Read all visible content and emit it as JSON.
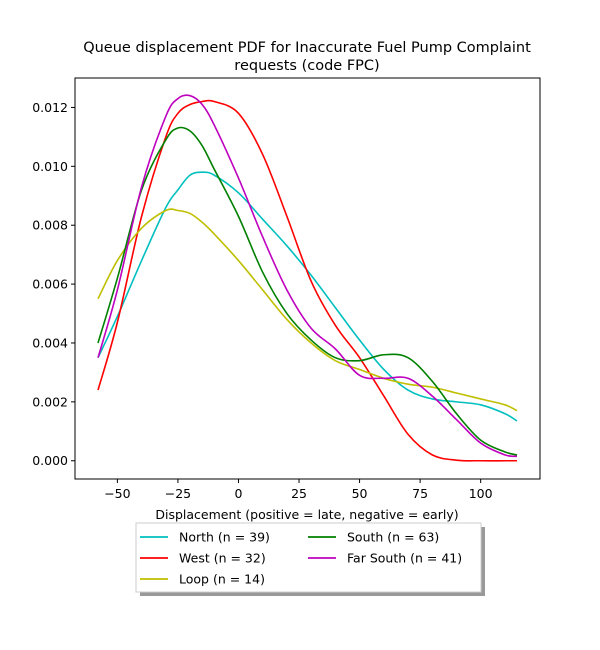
{
  "chart_data": {
    "type": "line",
    "title_line1": "Queue displacement PDF for Inaccurate Fuel Pump Complaint",
    "title_line2": "requests (code FPC)",
    "xlabel": "Displacement (positive = late, negative = early)",
    "ylabel": "",
    "xlim": [
      -67.5,
      124.5
    ],
    "ylim": [
      -0.00062,
      0.013
    ],
    "xticks": [
      -50,
      -25,
      0,
      25,
      50,
      75,
      100
    ],
    "xtick_labels": [
      "−50",
      "−25",
      "0",
      "25",
      "50",
      "75",
      "100"
    ],
    "yticks": [
      0.0,
      0.002,
      0.004,
      0.006,
      0.008,
      0.01,
      0.012
    ],
    "ytick_labels": [
      "0.000",
      "0.002",
      "0.004",
      "0.006",
      "0.008",
      "0.010",
      "0.012"
    ],
    "grid": false,
    "legend_placement": "below plot, centered, two columns",
    "x": [
      -58,
      -50,
      -40,
      -30,
      -25,
      -20,
      -15,
      -10,
      0,
      10,
      20,
      30,
      40,
      50,
      60,
      70,
      80,
      90,
      100,
      110,
      115
    ],
    "series": [
      {
        "name": "North (n = 39)",
        "color": "#00bfbf",
        "values": [
          0.0035,
          0.0049,
          0.0068,
          0.0086,
          0.0092,
          0.0097,
          0.0098,
          0.0097,
          0.0091,
          0.0082,
          0.0073,
          0.0063,
          0.0052,
          0.0041,
          0.0031,
          0.0024,
          0.0021,
          0.002,
          0.0019,
          0.0016,
          0.00135
        ]
      },
      {
        "name": "West (n = 32)",
        "color": "#ff0000",
        "values": [
          0.0024,
          0.0047,
          0.0083,
          0.011,
          0.0118,
          0.0121,
          0.0122,
          0.0122,
          0.0118,
          0.0104,
          0.0083,
          0.0061,
          0.0046,
          0.0035,
          0.0022,
          0.0009,
          0.0002,
          2e-05,
          0.0,
          0.0,
          0.0
        ]
      },
      {
        "name": "Loop (n = 14)",
        "color": "#bfbf00",
        "values": [
          0.0055,
          0.0068,
          0.0079,
          0.0085,
          0.0085,
          0.0084,
          0.0081,
          0.0077,
          0.0068,
          0.0058,
          0.0048,
          0.004,
          0.0034,
          0.0031,
          0.0028,
          0.0026,
          0.0025,
          0.0023,
          0.0021,
          0.0019,
          0.0017
        ]
      },
      {
        "name": "South (n = 63)",
        "color": "#008000",
        "values": [
          0.004,
          0.0062,
          0.0092,
          0.0109,
          0.0113,
          0.0112,
          0.0107,
          0.0099,
          0.0083,
          0.0064,
          0.005,
          0.0041,
          0.0035,
          0.0034,
          0.0036,
          0.0035,
          0.0027,
          0.0016,
          0.0007,
          0.0003,
          0.0002
        ]
      },
      {
        "name": "Far South (n = 41)",
        "color": "#bf00bf",
        "values": [
          0.0035,
          0.0058,
          0.0093,
          0.0117,
          0.0123,
          0.0124,
          0.0121,
          0.0114,
          0.0096,
          0.0076,
          0.0058,
          0.0045,
          0.0038,
          0.0029,
          0.0028,
          0.0028,
          0.0022,
          0.0014,
          0.0006,
          0.0002,
          0.00015
        ]
      }
    ]
  }
}
